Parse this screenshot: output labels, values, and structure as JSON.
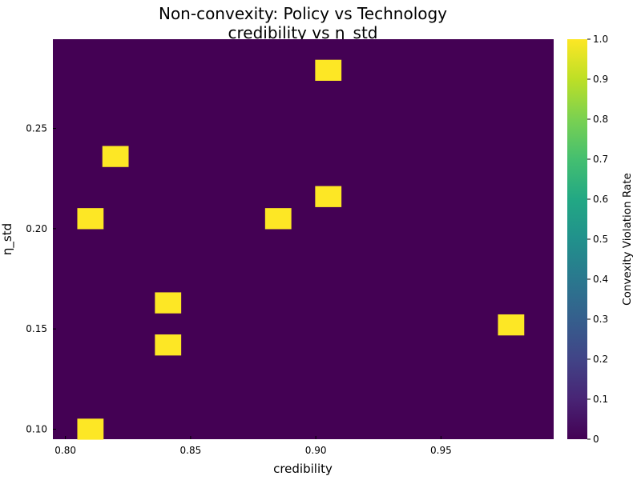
{
  "chart_data": {
    "type": "heatmap",
    "title": "Non-convexity: Policy vs Technology",
    "subtitle": "credibility vs η_std",
    "xlabel": "credibility",
    "ylabel": "η_std",
    "xlim": [
      0.795,
      0.995
    ],
    "ylim": [
      0.095,
      0.2945
    ],
    "xticks": [
      0.8,
      0.85,
      0.9,
      0.95
    ],
    "xtick_labels": [
      "0.80",
      "0.85",
      "0.90",
      "0.95"
    ],
    "yticks": [
      0.1,
      0.15,
      0.2,
      0.25
    ],
    "ytick_labels": [
      "0.10",
      "0.15",
      "0.20",
      "0.25"
    ],
    "background_value": 0,
    "cell_size": {
      "dx": 0.0105,
      "dy": 0.0105
    },
    "cells": [
      {
        "x": 0.81,
        "y": 0.1,
        "value": 1
      },
      {
        "x": 0.81,
        "y": 0.205,
        "value": 1
      },
      {
        "x": 0.82,
        "y": 0.236,
        "value": 1
      },
      {
        "x": 0.841,
        "y": 0.142,
        "value": 1
      },
      {
        "x": 0.841,
        "y": 0.163,
        "value": 1
      },
      {
        "x": 0.885,
        "y": 0.205,
        "value": 1
      },
      {
        "x": 0.905,
        "y": 0.216,
        "value": 1
      },
      {
        "x": 0.905,
        "y": 0.279,
        "value": 1
      },
      {
        "x": 0.978,
        "y": 0.152,
        "value": 1
      }
    ],
    "colorbar": {
      "label": "Convexity Violation Rate",
      "range": [
        0,
        1
      ],
      "ticks": [
        0,
        0.1,
        0.2,
        0.3,
        0.4,
        0.5,
        0.6,
        0.7,
        0.8,
        0.9,
        1.0
      ],
      "tick_labels": [
        "0",
        "0.1",
        "0.2",
        "0.3",
        "0.4",
        "0.5",
        "0.6",
        "0.7",
        "0.8",
        "0.9",
        "1.0"
      ],
      "colormap": "viridis"
    },
    "grid": false
  }
}
